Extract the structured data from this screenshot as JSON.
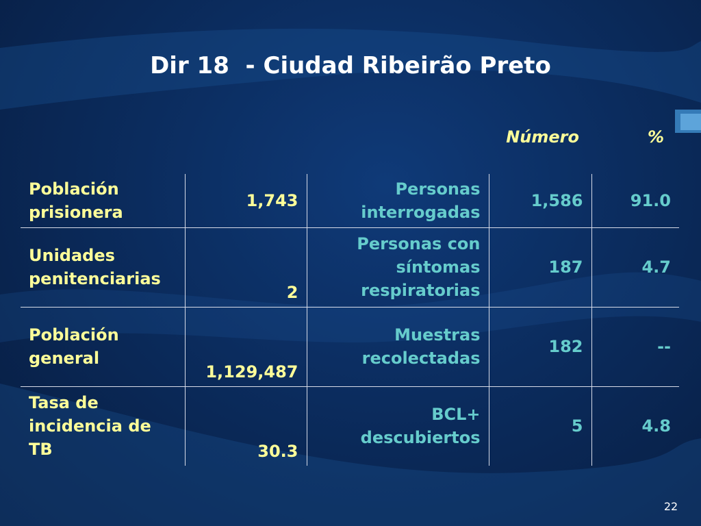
{
  "slide": {
    "title": "Dir 18  - Ciudad Ribeirão Preto",
    "page_number": "22"
  },
  "columns": {
    "numero": "Número",
    "percent": "%"
  },
  "rows": [
    {
      "label": "Población prisionera",
      "value": "1,743",
      "measure": "Personas interrogadas",
      "numero": "1,586",
      "percent": "91.0"
    },
    {
      "label": "Unidades penitenciarias",
      "value": "2",
      "measure": "Personas con síntomas respiratorias",
      "numero": "187",
      "percent": "4.7"
    },
    {
      "label": "Población general",
      "value": "1,129,487",
      "measure": "Muestras recolectadas",
      "numero": "182",
      "percent": "--"
    },
    {
      "label": "Tasa de incidencia de TB",
      "value": "30.3",
      "measure": "BCL+ descubiertos",
      "numero": "5",
      "percent": "4.8"
    }
  ],
  "colors": {
    "label_text": "#ffff99",
    "measure_text": "#66cccc",
    "background": "#0b2c5e"
  }
}
